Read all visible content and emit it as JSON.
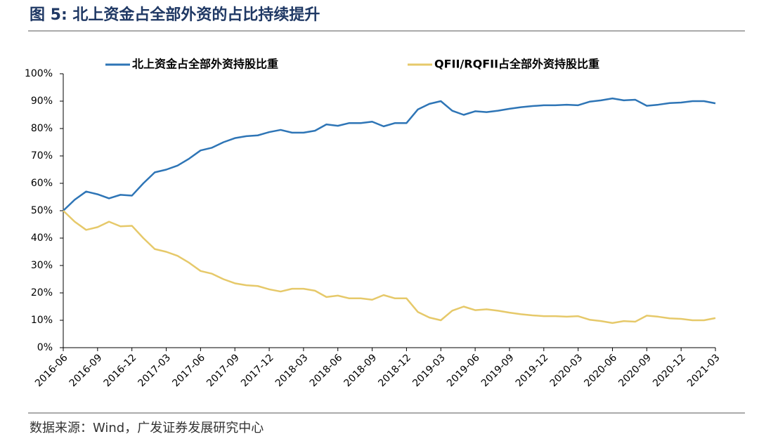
{
  "chart_data": {
    "type": "line",
    "title": "图 5: 北上资金占全部外资的占比持续提升",
    "source": "数据来源：Wind，广发证券发展研究中心",
    "categories": [
      "2016-06",
      null,
      null,
      "2016-09",
      null,
      null,
      "2016-12",
      null,
      null,
      "2017-03",
      null,
      null,
      "2017-06",
      null,
      null,
      "2017-09",
      null,
      null,
      "2017-12",
      null,
      null,
      "2018-03",
      null,
      null,
      "2018-06",
      null,
      null,
      "2018-09",
      null,
      null,
      "2018-12",
      null,
      null,
      "2019-03",
      null,
      null,
      "2019-06",
      null,
      null,
      "2019-09",
      null,
      null,
      "2019-12",
      null,
      null,
      "2020-03",
      null,
      null,
      "2020-06",
      null,
      null,
      "2020-09",
      null,
      null,
      "2020-12",
      null,
      null,
      "2021-03"
    ],
    "series": [
      {
        "name": "北上资金占全部外资持股比重",
        "color": "#2e75b6",
        "values": [
          50,
          54,
          57,
          56,
          54.5,
          55.8,
          55.5,
          60,
          64,
          65,
          66.5,
          69,
          72,
          73,
          75,
          76.5,
          77.2,
          77.5,
          78.7,
          79.5,
          78.5,
          78.5,
          79.2,
          81.5,
          81,
          82,
          82,
          82.5,
          80.8,
          82,
          82,
          87,
          89,
          90,
          86.5,
          85,
          86.3,
          86,
          86.5,
          87.2,
          87.8,
          88.2,
          88.5,
          88.5,
          88.7,
          88.5,
          89.8,
          90.3,
          91,
          90.3,
          90.5,
          88.3,
          88.7,
          89.3,
          89.5,
          90,
          90,
          89.2
        ]
      },
      {
        "name": "QFII/RQFII占全部外资持股比重",
        "color": "#e6c96a",
        "values": [
          50,
          46,
          43,
          44,
          46,
          44.3,
          44.5,
          40,
          36,
          35,
          33.5,
          31,
          28,
          27,
          25,
          23.5,
          22.8,
          22.5,
          21.3,
          20.5,
          21.5,
          21.5,
          20.8,
          18.5,
          19,
          18,
          18,
          17.5,
          19.2,
          18,
          18,
          13,
          11,
          10,
          13.5,
          15,
          13.7,
          14,
          13.5,
          12.8,
          12.2,
          11.8,
          11.5,
          11.5,
          11.3,
          11.5,
          10.2,
          9.7,
          9,
          9.7,
          9.5,
          11.7,
          11.3,
          10.7,
          10.5,
          10,
          10,
          10.8
        ]
      }
    ],
    "ylim": [
      0,
      100
    ],
    "yticks": [
      {
        "value": 0,
        "label": "0%"
      },
      {
        "value": 10,
        "label": "10%"
      },
      {
        "value": 20,
        "label": "20%"
      },
      {
        "value": 30,
        "label": "30%"
      },
      {
        "value": 40,
        "label": "40%"
      },
      {
        "value": 50,
        "label": "50%"
      },
      {
        "value": 60,
        "label": "60%"
      },
      {
        "value": 70,
        "label": "70%"
      },
      {
        "value": 80,
        "label": "80%"
      },
      {
        "value": 90,
        "label": "90%"
      },
      {
        "value": 100,
        "label": "100%"
      }
    ],
    "legend": "top"
  }
}
